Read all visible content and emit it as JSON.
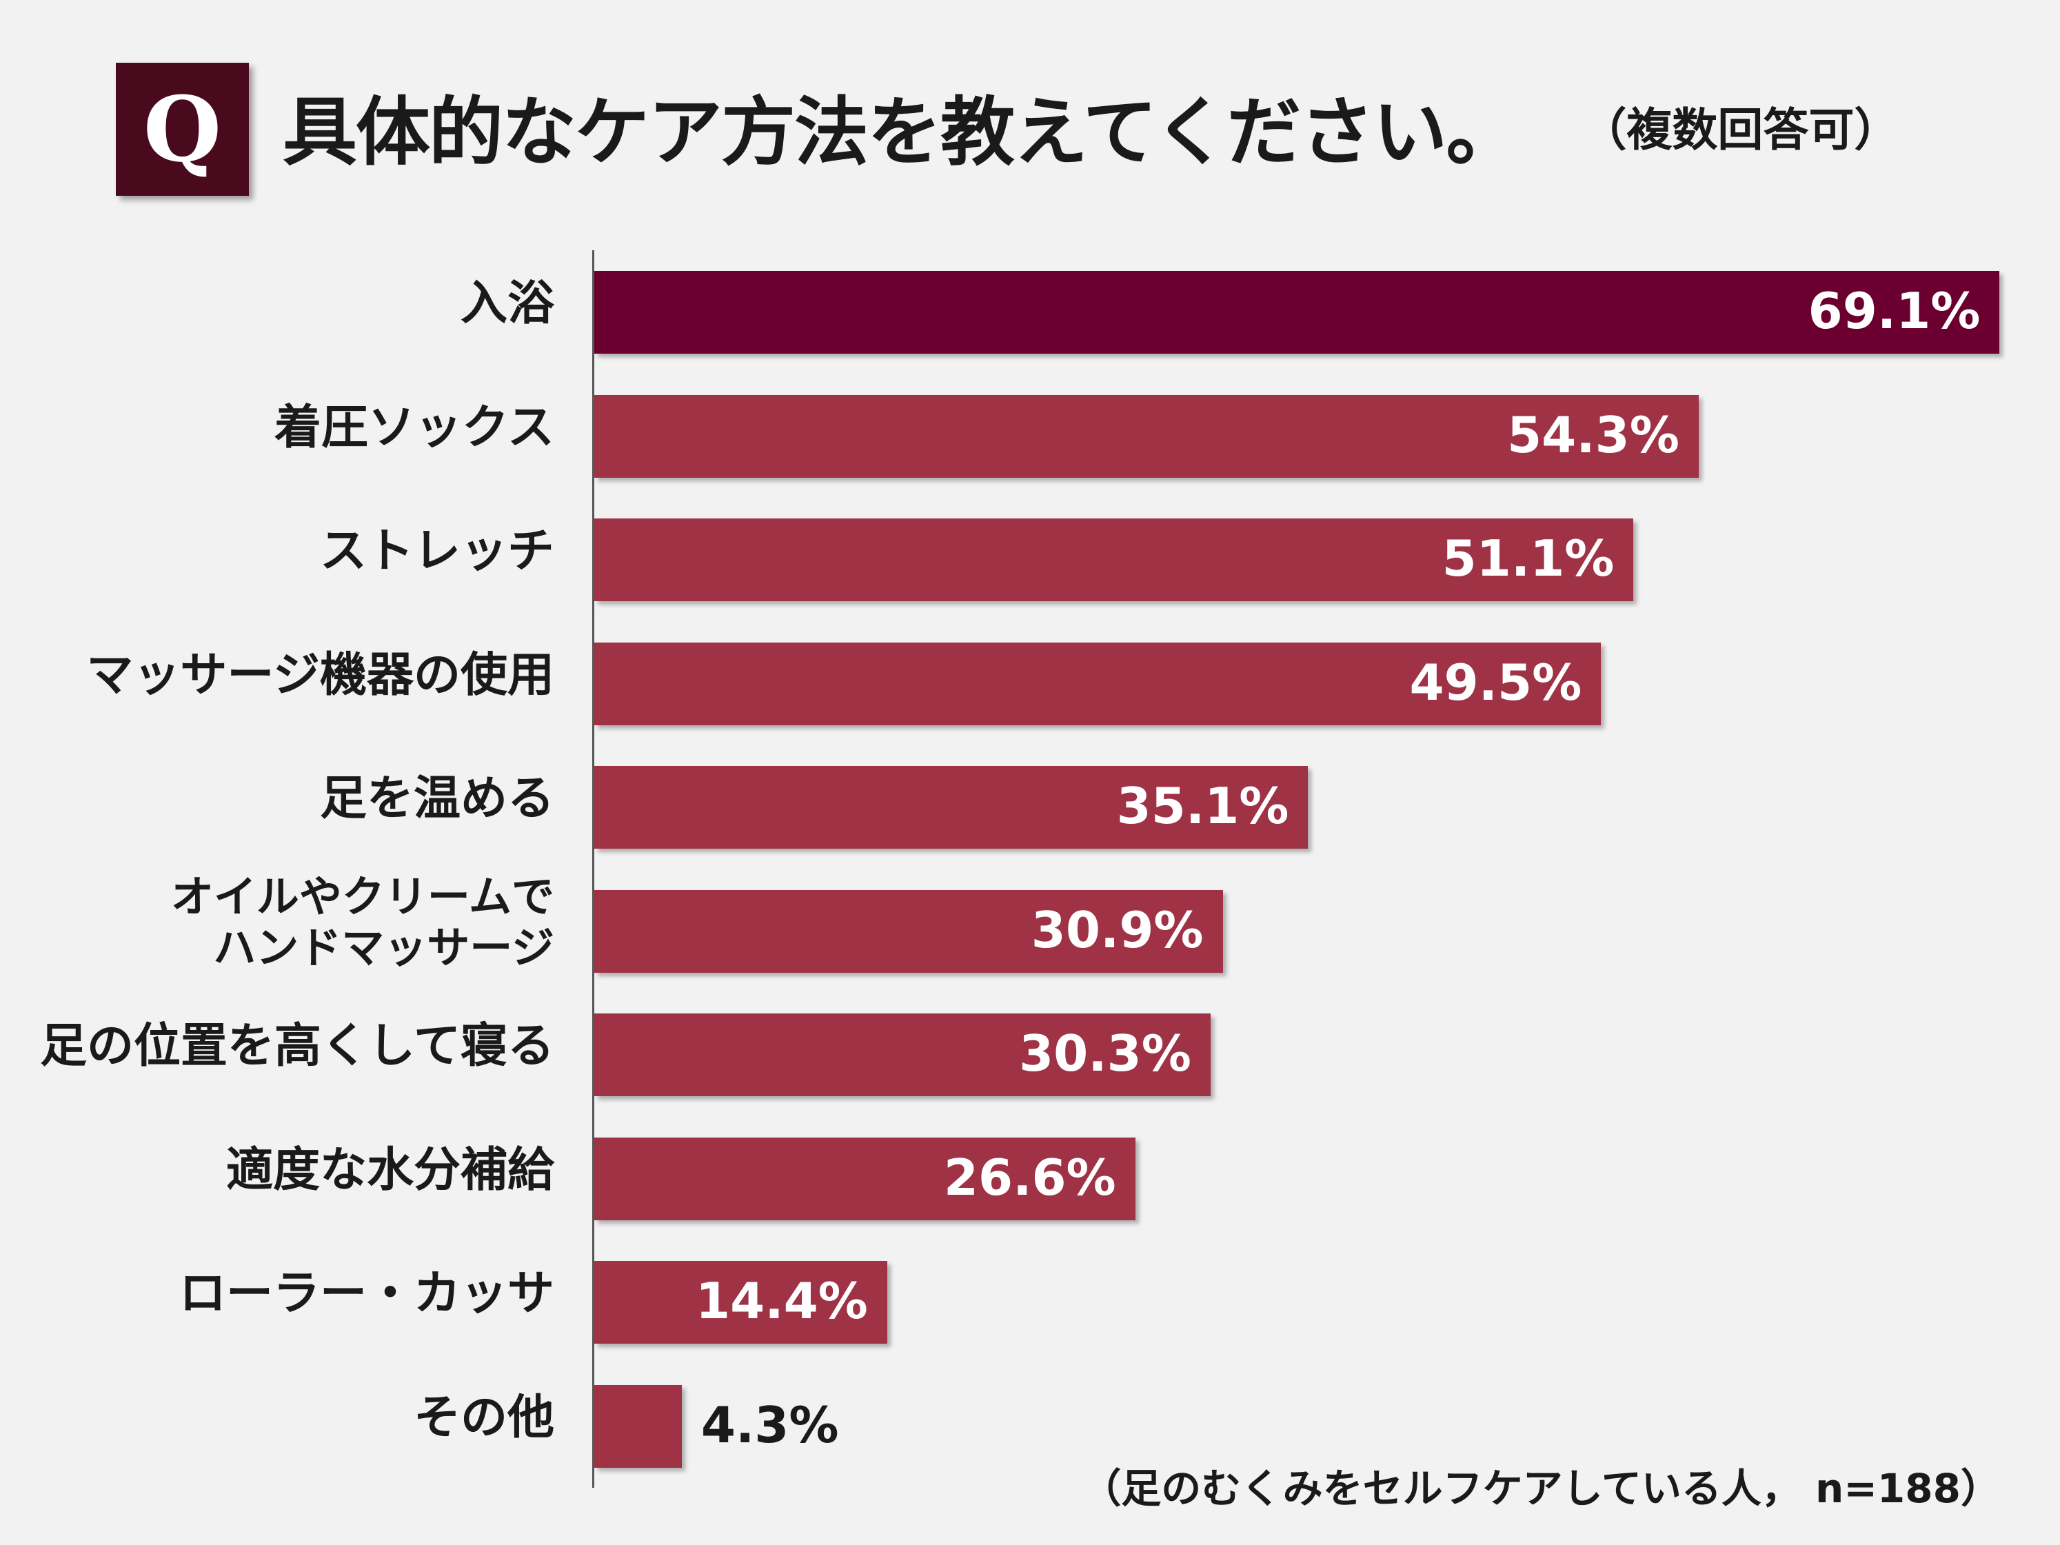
{
  "header": {
    "q_mark": "Q",
    "title": "具体的なケア方法を教えてください。",
    "note": "（複数回答可）"
  },
  "footnote": "（足のむくみをセルフケアしている人， n=188）",
  "colors": {
    "accent": "#6b0030",
    "bar": "#a03246",
    "qbox": "#4a0a1e",
    "background": "#f2f2f2"
  },
  "chart_data": {
    "type": "bar",
    "orientation": "horizontal",
    "categories": [
      "入浴",
      "着圧ソックス",
      "ストレッチ",
      "マッサージ機器の使用",
      "足を温める",
      "オイルやクリームで\nハンドマッサージ",
      "足の位置を高くして寝る",
      "適度な水分補給",
      "ローラー・カッサ",
      "その他"
    ],
    "values": [
      69.1,
      54.3,
      51.1,
      49.5,
      35.1,
      30.9,
      30.3,
      26.6,
      14.4,
      4.3
    ],
    "labels": [
      "69.1%",
      "54.3%",
      "51.1%",
      "49.5%",
      "35.1%",
      "30.9%",
      "30.3%",
      "26.6%",
      "14.4%",
      "4.3%"
    ],
    "unit": "%",
    "xlim": [
      0,
      70
    ],
    "grid": false
  }
}
